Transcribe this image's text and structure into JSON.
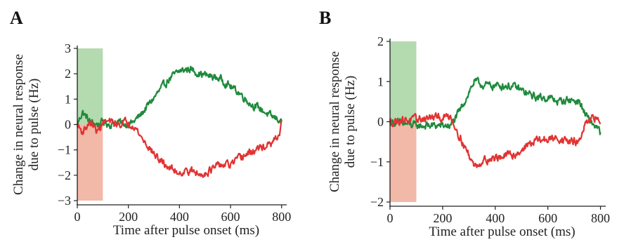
{
  "chart_data": [
    {
      "panel_label": "A",
      "type": "line",
      "xlabel": "Time after pulse onset (ms)",
      "ylabel": [
        "Change in neural response",
        "due to pulse (Hz)"
      ],
      "xlim": [
        0,
        820
      ],
      "ylim": [
        -3,
        3
      ],
      "xticks": [
        "0",
        "200",
        "400",
        "600",
        "800"
      ],
      "yticks": [
        "3",
        "2",
        "1",
        "0",
        "−1",
        "−2",
        "−3"
      ],
      "grid": false,
      "shaded_regions": [
        {
          "x": [
            0,
            100
          ],
          "y": [
            0,
            3
          ],
          "color": "#b4dab0"
        },
        {
          "x": [
            0,
            100
          ],
          "y": [
            -3,
            0
          ],
          "color": "#f2b8a8"
        }
      ],
      "series": [
        {
          "color": "#1f8a3c",
          "x": [
            0,
            20,
            50,
            80,
            100,
            130,
            160,
            190,
            220,
            250,
            280,
            320,
            360,
            400,
            440,
            480,
            520,
            560,
            600,
            640,
            680,
            720,
            760,
            790,
            800
          ],
          "y": [
            0.0,
            0.5,
            0.1,
            0.0,
            0.1,
            0.0,
            0.1,
            0.0,
            0.1,
            0.4,
            0.8,
            1.3,
            1.8,
            2.1,
            2.2,
            2.0,
            1.9,
            1.8,
            1.5,
            1.2,
            0.8,
            0.6,
            0.3,
            0.2,
            0.1
          ]
        },
        {
          "color": "#e23232",
          "x": [
            0,
            20,
            50,
            80,
            100,
            130,
            160,
            190,
            220,
            250,
            280,
            320,
            360,
            400,
            440,
            480,
            520,
            560,
            600,
            640,
            680,
            720,
            760,
            790,
            800
          ],
          "y": [
            0.0,
            -0.3,
            0.1,
            -0.3,
            0.1,
            0.1,
            0.0,
            0.1,
            0.0,
            -0.5,
            -0.9,
            -1.4,
            -1.7,
            -1.9,
            -1.8,
            -2.0,
            -1.8,
            -1.6,
            -1.6,
            -1.3,
            -1.1,
            -0.9,
            -0.8,
            -0.4,
            0.0
          ]
        }
      ]
    },
    {
      "panel_label": "B",
      "type": "line",
      "xlabel": "Time after pulse onset (ms)",
      "ylabel": [
        "Change in neural response",
        "due to pulse (Hz)"
      ],
      "xlim": [
        0,
        820
      ],
      "ylim": [
        -2,
        2
      ],
      "xticks": [
        "0",
        "200",
        "400",
        "600",
        "800"
      ],
      "yticks": [
        "2",
        "1",
        "0",
        "−1",
        "−2"
      ],
      "grid": false,
      "shaded_regions": [
        {
          "x": [
            0,
            100
          ],
          "y": [
            0,
            2
          ],
          "color": "#b4dab0"
        },
        {
          "x": [
            0,
            100
          ],
          "y": [
            -2,
            0
          ],
          "color": "#f2b8a8"
        }
      ],
      "series": [
        {
          "color": "#1f8a3c",
          "x": [
            0,
            50,
            100,
            150,
            200,
            230,
            260,
            290,
            320,
            360,
            400,
            440,
            480,
            520,
            560,
            600,
            640,
            680,
            720,
            740,
            760,
            780,
            800
          ],
          "y": [
            0.0,
            -0.05,
            -0.1,
            -0.1,
            -0.1,
            -0.1,
            0.2,
            0.6,
            1.0,
            0.9,
            0.9,
            0.9,
            0.85,
            0.7,
            0.6,
            0.6,
            0.5,
            0.55,
            0.5,
            0.2,
            0.0,
            -0.1,
            -0.3
          ]
        },
        {
          "color": "#e23232",
          "x": [
            0,
            50,
            100,
            150,
            200,
            230,
            260,
            290,
            320,
            360,
            400,
            440,
            480,
            520,
            560,
            600,
            640,
            680,
            720,
            740,
            760,
            780,
            800
          ],
          "y": [
            0.0,
            0.05,
            0.05,
            0.1,
            0.1,
            0.15,
            -0.3,
            -0.7,
            -1.1,
            -0.95,
            -0.9,
            -0.85,
            -0.8,
            -0.6,
            -0.45,
            -0.45,
            -0.4,
            -0.5,
            -0.5,
            -0.1,
            0.0,
            0.1,
            0.0
          ]
        }
      ]
    }
  ]
}
